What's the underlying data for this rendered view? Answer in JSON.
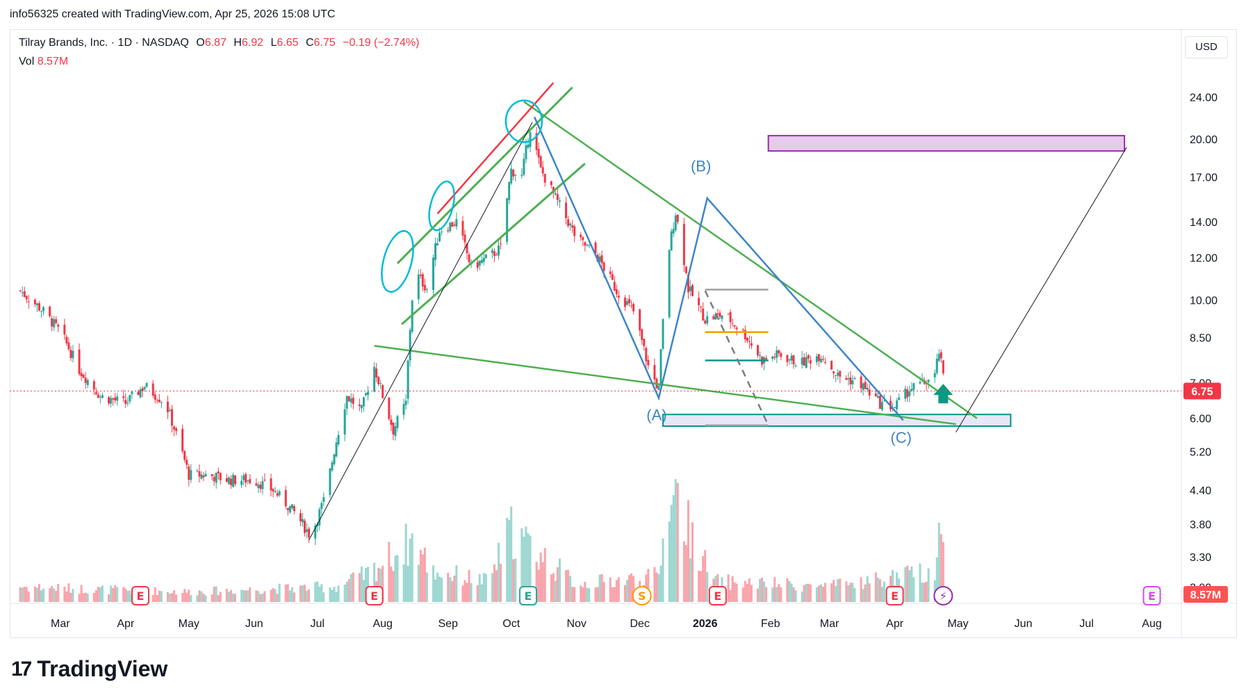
{
  "header": {
    "created_by": "info56325 created with TradingView.com, Apr 25, 2026 15:08 UTC"
  },
  "legend": {
    "symbol": "Tilray Brands, Inc. · 1D · NASDAQ",
    "o_label": "O",
    "o_value": "6.87",
    "h_label": "H",
    "h_value": "6.92",
    "l_label": "L",
    "l_value": "6.65",
    "c_label": "C",
    "c_value": "6.75",
    "change": "−0.19 (−2.74%)",
    "vol_label": "Vol",
    "vol_value": "8.57M"
  },
  "currency": "USD",
  "brand": {
    "name": "TradingView"
  },
  "colors": {
    "up": "#26a69a",
    "down": "#f23645",
    "wave": "#3d85c6",
    "trend_green": "#4caf50",
    "red_line": "#f23645",
    "circle": "#00bcd4",
    "zone_purple": "#9c27b0",
    "zone_fill": "#e1bee7",
    "zone_teal": "#009688",
    "orange": "#ff9800",
    "grey": "#787b86"
  },
  "chart_data": {
    "type": "candlestick",
    "y_scale": "log",
    "ylim": [
      2.75,
      27
    ],
    "x_range": [
      "2025-02-05",
      "2026-08-15"
    ],
    "y_ticks": [
      "24.00",
      "20.00",
      "17.00",
      "14.00",
      "12.00",
      "10.00",
      "8.50",
      "7.00",
      "6.00",
      "5.20",
      "4.40",
      "3.80",
      "3.30",
      "2.90"
    ],
    "x_ticks": [
      {
        "label": "Mar",
        "date": "2025-03-01"
      },
      {
        "label": "Apr",
        "date": "2025-04-01"
      },
      {
        "label": "May",
        "date": "2025-05-01"
      },
      {
        "label": "Jun",
        "date": "2025-06-01"
      },
      {
        "label": "Jul",
        "date": "2025-07-01"
      },
      {
        "label": "Aug",
        "date": "2025-08-01"
      },
      {
        "label": "Sep",
        "date": "2025-09-01"
      },
      {
        "label": "Oct",
        "date": "2025-10-01"
      },
      {
        "label": "Nov",
        "date": "2025-11-01"
      },
      {
        "label": "Dec",
        "date": "2025-12-01"
      },
      {
        "label": "2026",
        "date": "2026-01-01"
      },
      {
        "label": "Feb",
        "date": "2026-02-01"
      },
      {
        "label": "Mar",
        "date": "2026-03-01"
      },
      {
        "label": "Apr",
        "date": "2026-04-01"
      },
      {
        "label": "May",
        "date": "2026-05-01"
      },
      {
        "label": "Jun",
        "date": "2026-06-01"
      },
      {
        "label": "Jul",
        "date": "2026-07-01"
      },
      {
        "label": "Aug",
        "date": "2026-08-01"
      }
    ],
    "last_price": "6.75",
    "last_volume": "8.57M",
    "close_path": [
      [
        "2025-02-10",
        10.4
      ],
      [
        "2025-02-20",
        9.6
      ],
      [
        "2025-03-01",
        8.7
      ],
      [
        "2025-03-10",
        7.4
      ],
      [
        "2025-03-20",
        6.6
      ],
      [
        "2025-04-01",
        6.4
      ],
      [
        "2025-04-10",
        6.9
      ],
      [
        "2025-04-20",
        6.4
      ],
      [
        "2025-04-25",
        5.6
      ],
      [
        "2025-05-01",
        4.7
      ],
      [
        "2025-05-10",
        4.7
      ],
      [
        "2025-05-20",
        4.6
      ],
      [
        "2025-06-01",
        4.6
      ],
      [
        "2025-06-10",
        4.4
      ],
      [
        "2025-06-20",
        4.0
      ],
      [
        "2025-06-28",
        3.6
      ],
      [
        "2025-07-05",
        4.3
      ],
      [
        "2025-07-15",
        6.6
      ],
      [
        "2025-07-22",
        6.2
      ],
      [
        "2025-07-28",
        7.5
      ],
      [
        "2025-08-02",
        6.4
      ],
      [
        "2025-08-06",
        5.7
      ],
      [
        "2025-08-12",
        6.4
      ],
      [
        "2025-08-16",
        11.3
      ],
      [
        "2025-08-22",
        10.5
      ],
      [
        "2025-08-28",
        13.5
      ],
      [
        "2025-09-05",
        14.0
      ],
      [
        "2025-09-12",
        11.5
      ],
      [
        "2025-09-20",
        12.0
      ],
      [
        "2025-09-26",
        12.5
      ],
      [
        "2025-10-01",
        17.5
      ],
      [
        "2025-10-06",
        17.0
      ],
      [
        "2025-10-10",
        21.0
      ],
      [
        "2025-10-15",
        17.5
      ],
      [
        "2025-10-22",
        15.5
      ],
      [
        "2025-11-01",
        13.0
      ],
      [
        "2025-11-10",
        12.2
      ],
      [
        "2025-11-20",
        10.4
      ],
      [
        "2025-11-28",
        9.5
      ],
      [
        "2025-12-05",
        7.5
      ],
      [
        "2025-12-10",
        6.8
      ],
      [
        "2025-12-15",
        12.5
      ],
      [
        "2025-12-18",
        14.6
      ],
      [
        "2025-12-24",
        10.5
      ],
      [
        "2026-01-01",
        9.2
      ],
      [
        "2026-01-10",
        9.4
      ],
      [
        "2026-01-20",
        8.6
      ],
      [
        "2026-01-28",
        7.7
      ],
      [
        "2026-02-05",
        7.9
      ],
      [
        "2026-02-15",
        7.6
      ],
      [
        "2026-02-25",
        7.9
      ],
      [
        "2026-03-05",
        7.2
      ],
      [
        "2026-03-15",
        7.0
      ],
      [
        "2026-03-25",
        6.4
      ],
      [
        "2026-04-01",
        6.3
      ],
      [
        "2026-04-08",
        6.8
      ],
      [
        "2026-04-15",
        7.0
      ],
      [
        "2026-04-20",
        7.2
      ],
      [
        "2026-04-22",
        8.0
      ],
      [
        "2026-04-25",
        6.75
      ]
    ],
    "volume_path": [
      [
        "2025-02-10",
        0.3
      ],
      [
        "2025-03-15",
        0.25
      ],
      [
        "2025-05-01",
        0.2
      ],
      [
        "2025-07-10",
        0.3
      ],
      [
        "2025-07-25",
        0.55
      ],
      [
        "2025-08-15",
        1.2
      ],
      [
        "2025-08-25",
        0.6
      ],
      [
        "2025-09-20",
        0.4
      ],
      [
        "2025-10-01",
        1.4
      ],
      [
        "2025-10-12",
        1.0
      ],
      [
        "2025-11-01",
        0.35
      ],
      [
        "2025-12-10",
        0.5
      ],
      [
        "2025-12-16",
        2.5
      ],
      [
        "2025-12-20",
        1.8
      ],
      [
        "2026-01-05",
        0.4
      ],
      [
        "2026-03-01",
        0.3
      ],
      [
        "2026-04-20",
        0.6
      ],
      [
        "2026-04-22",
        1.4
      ],
      [
        "2026-04-25",
        0.8
      ]
    ],
    "vol_max": 2.5,
    "events": [
      {
        "date": "2025-04-08",
        "label": "E",
        "color": "#f23645"
      },
      {
        "date": "2025-07-28",
        "label": "E",
        "color": "#f23645"
      },
      {
        "date": "2025-10-09",
        "label": "E",
        "color": "#26a69a"
      },
      {
        "date": "2025-12-02",
        "label": "S",
        "color": "#ff9800"
      },
      {
        "date": "2026-01-07",
        "label": "E",
        "color": "#f23645"
      },
      {
        "date": "2026-04-01",
        "label": "E",
        "color": "#f23645"
      },
      {
        "date": "2026-04-24",
        "label": "⚡",
        "color": "#9c27b0"
      },
      {
        "date": "2026-08-01",
        "label": "E",
        "color": "#e040fb"
      }
    ],
    "wave_labels": [
      {
        "text": "(B)",
        "date": "2025-12-30",
        "price": 17.4
      },
      {
        "text": "(A)",
        "date": "2025-12-09",
        "price": 5.95
      },
      {
        "text": "(C)",
        "date": "2026-04-04",
        "price": 5.4
      }
    ],
    "wave_path": [
      [
        "2025-10-12",
        22.0
      ],
      [
        "2025-12-10",
        6.55
      ],
      [
        "2026-01-02",
        15.5
      ],
      [
        "2026-04-05",
        5.95
      ]
    ],
    "trend_lines": [
      {
        "color": "#4caf50",
        "w": 2.5,
        "pts": [
          [
            "2025-07-28",
            8.2
          ],
          [
            "2026-04-30",
            5.85
          ]
        ]
      },
      {
        "color": "#4caf50",
        "w": 2.5,
        "pts": [
          [
            "2025-10-07",
            23.5
          ],
          [
            "2026-05-10",
            6.0
          ]
        ]
      },
      {
        "color": "#4caf50",
        "w": 3,
        "pts": [
          [
            "2025-08-08",
            11.7
          ],
          [
            "2025-10-30",
            25.0
          ]
        ]
      },
      {
        "color": "#4caf50",
        "w": 3,
        "pts": [
          [
            "2025-08-10",
            9.0
          ],
          [
            "2025-11-05",
            18.0
          ]
        ]
      },
      {
        "color": "#f23645",
        "w": 2.5,
        "pts": [
          [
            "2025-08-27",
            14.5
          ],
          [
            "2025-10-21",
            25.5
          ]
        ]
      },
      {
        "color": "#131722",
        "w": 1,
        "pts": [
          [
            "2025-06-27",
            3.55
          ],
          [
            "2025-10-11",
            21.5
          ]
        ]
      },
      {
        "color": "#131722",
        "w": 1,
        "pts": [
          [
            "2026-04-30",
            5.65
          ],
          [
            "2026-07-20",
            19.3
          ]
        ]
      }
    ],
    "zones": [
      {
        "color": "#9c27b0",
        "fill": "#e1bee7",
        "from": "2026-01-31",
        "to": "2026-07-19",
        "top": 20.3,
        "bottom": 19.0
      },
      {
        "color": "#009688",
        "fill": "#e1e1f5",
        "from": "2025-12-12",
        "to": "2026-05-26",
        "top": 6.1,
        "bottom": 5.8
      }
    ],
    "level_lines": [
      {
        "color": "#9e9e9e",
        "from": "2026-01-01",
        "to": "2026-01-31",
        "price": 10.45
      },
      {
        "color": "#ff9800",
        "from": "2026-01-01",
        "to": "2026-01-31",
        "price": 8.7
      },
      {
        "color": "#009688",
        "from": "2026-01-01",
        "to": "2026-01-31",
        "price": 7.7
      },
      {
        "color": "#9e9e9e",
        "from": "2026-01-01",
        "to": "2026-01-31",
        "price": 5.82
      }
    ],
    "dashed_path": [
      [
        "2026-01-01",
        10.4
      ],
      [
        "2026-01-31",
        5.82
      ]
    ],
    "circles": [
      {
        "date": "2025-08-08",
        "price": 11.8,
        "rx": 20,
        "ry": 45,
        "rot": 15
      },
      {
        "date": "2025-08-29",
        "price": 15.0,
        "rx": 16,
        "ry": 36,
        "rot": 15
      },
      {
        "date": "2025-10-07",
        "price": 21.6,
        "rx": 26,
        "ry": 30,
        "rot": 0
      }
    ],
    "arrow": {
      "date": "2026-04-24",
      "price": 6.4,
      "color": "#089981"
    }
  }
}
